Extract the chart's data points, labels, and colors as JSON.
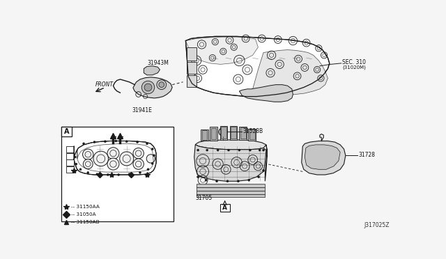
{
  "background_color": "#f5f5f5",
  "line_color": "#1a1a1a",
  "fig_width": 6.4,
  "fig_height": 3.72,
  "dpi": 100,
  "diagram_id": "J317025Z",
  "sec310_label": "SEC. 310",
  "sec310_sub": "(31020M)",
  "label_31943M": "31943M",
  "label_31941E": "31941E",
  "label_31528B": "31528B",
  "label_31705": "31705",
  "label_31728": "31728",
  "label_FRONT": "FRONT",
  "legend_star_text": "-- 31150AA",
  "legend_diamond_text": "-- 31050A",
  "legend_triangle_text": "-- 31150AB"
}
